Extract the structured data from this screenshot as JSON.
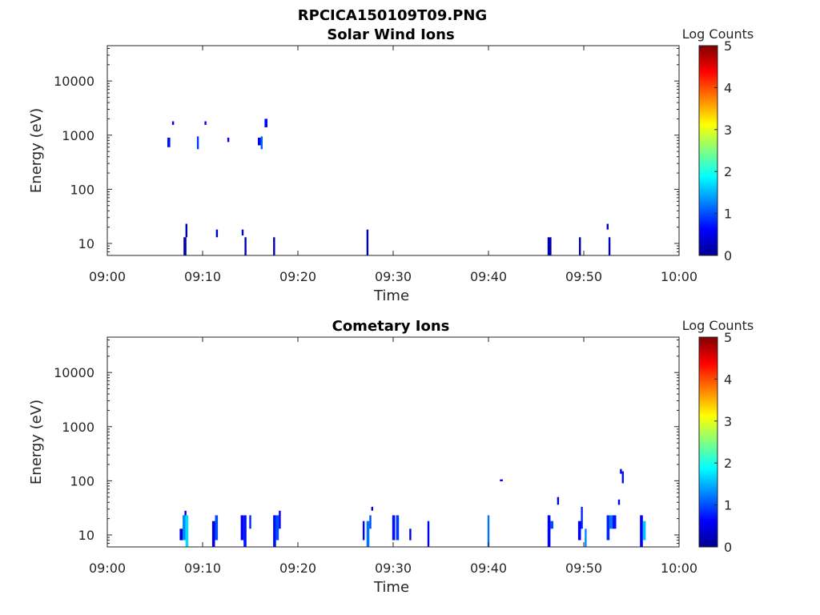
{
  "figure_title": "RPCICA150109T09.PNG",
  "colorbar_label": "Log Counts",
  "colormap": [
    "#00008f",
    "#0000ff",
    "#0080ff",
    "#00ffff",
    "#80ff80",
    "#ffff00",
    "#ff8000",
    "#ff0000",
    "#800000"
  ],
  "chart_data": [
    {
      "type": "heatmap",
      "title": "Solar Wind Ions",
      "xlabel": "Time",
      "ylabel": "Energy (eV)",
      "xticks": [
        "09:00",
        "09:10",
        "09:20",
        "09:30",
        "09:40",
        "09:50",
        "10:00"
      ],
      "yticks": [
        "10",
        "100",
        "1000",
        "10000"
      ],
      "xlim_minutes": [
        0,
        60
      ],
      "ylim_eV": [
        6,
        45000
      ],
      "yscale": "log",
      "colorbar": {
        "label": "Log Counts",
        "range": [
          0,
          5
        ],
        "ticks": [
          "0",
          "1",
          "2",
          "3",
          "4",
          "5"
        ]
      },
      "cells": [
        {
          "t": 6.3,
          "dt": 0.3,
          "e0": 600,
          "e1": 900,
          "v": 0.7
        },
        {
          "t": 6.8,
          "dt": 0.2,
          "e0": 1550,
          "e1": 1800,
          "v": 0.4
        },
        {
          "t": 9.4,
          "dt": 0.2,
          "e0": 550,
          "e1": 950,
          "v": 0.9
        },
        {
          "t": 10.2,
          "dt": 0.2,
          "e0": 1550,
          "e1": 1800,
          "v": 0.5
        },
        {
          "t": 12.6,
          "dt": 0.2,
          "e0": 750,
          "e1": 900,
          "v": 0.4
        },
        {
          "t": 15.8,
          "dt": 0.3,
          "e0": 650,
          "e1": 900,
          "v": 0.6
        },
        {
          "t": 16.1,
          "dt": 0.2,
          "e0": 550,
          "e1": 950,
          "v": 1.1
        },
        {
          "t": 16.5,
          "dt": 0.3,
          "e0": 1400,
          "e1": 2000,
          "v": 0.6
        },
        {
          "t": 8.0,
          "dt": 0.3,
          "e0": 6,
          "e1": 13,
          "v": 0.2
        },
        {
          "t": 8.2,
          "dt": 0.2,
          "e0": 13,
          "e1": 23,
          "v": 0.2
        },
        {
          "t": 11.4,
          "dt": 0.2,
          "e0": 13,
          "e1": 18,
          "v": 0.3
        },
        {
          "t": 14.1,
          "dt": 0.2,
          "e0": 14,
          "e1": 18,
          "v": 0.3
        },
        {
          "t": 14.4,
          "dt": 0.2,
          "e0": 6,
          "e1": 13,
          "v": 0.2
        },
        {
          "t": 17.4,
          "dt": 0.2,
          "e0": 6,
          "e1": 13,
          "v": 0.2
        },
        {
          "t": 27.2,
          "dt": 0.2,
          "e0": 6,
          "e1": 18,
          "v": 0.2
        },
        {
          "t": 46.2,
          "dt": 0.4,
          "e0": 6,
          "e1": 13,
          "v": 0.2
        },
        {
          "t": 49.5,
          "dt": 0.2,
          "e0": 6,
          "e1": 13,
          "v": 0.2
        },
        {
          "t": 52.4,
          "dt": 0.2,
          "e0": 18,
          "e1": 23,
          "v": 0.3
        },
        {
          "t": 52.6,
          "dt": 0.2,
          "e0": 6,
          "e1": 13,
          "v": 0.3
        }
      ]
    },
    {
      "type": "heatmap",
      "title": "Cometary Ions",
      "xlabel": "Time",
      "ylabel": "Energy (eV)",
      "xticks": [
        "09:00",
        "09:10",
        "09:20",
        "09:30",
        "09:40",
        "09:50",
        "10:00"
      ],
      "yticks": [
        "10",
        "100",
        "1000",
        "10000"
      ],
      "xlim_minutes": [
        0,
        60
      ],
      "ylim_eV": [
        6,
        45000
      ],
      "yscale": "log",
      "colorbar": {
        "label": "Log Counts",
        "range": [
          0,
          5
        ],
        "ticks": [
          "0",
          "1",
          "2",
          "3",
          "4",
          "5"
        ]
      },
      "cells": [
        {
          "t": 7.6,
          "dt": 0.3,
          "e0": 8,
          "e1": 13,
          "v": 0.4
        },
        {
          "t": 7.9,
          "dt": 0.3,
          "e0": 8,
          "e1": 23,
          "v": 1.3
        },
        {
          "t": 8.2,
          "dt": 0.3,
          "e0": 6,
          "e1": 23,
          "v": 1.7
        },
        {
          "t": 8.1,
          "dt": 0.2,
          "e0": 23,
          "e1": 28,
          "v": 0.4
        },
        {
          "t": 11.0,
          "dt": 0.3,
          "e0": 6,
          "e1": 18,
          "v": 0.5
        },
        {
          "t": 11.3,
          "dt": 0.3,
          "e0": 8,
          "e1": 23,
          "v": 1.0
        },
        {
          "t": 14.0,
          "dt": 0.3,
          "e0": 8,
          "e1": 23,
          "v": 0.6
        },
        {
          "t": 14.3,
          "dt": 0.3,
          "e0": 6,
          "e1": 23,
          "v": 0.7
        },
        {
          "t": 14.9,
          "dt": 0.2,
          "e0": 13,
          "e1": 23,
          "v": 0.8
        },
        {
          "t": 17.4,
          "dt": 0.3,
          "e0": 6,
          "e1": 23,
          "v": 0.7
        },
        {
          "t": 17.7,
          "dt": 0.3,
          "e0": 8,
          "e1": 23,
          "v": 1.0
        },
        {
          "t": 18.0,
          "dt": 0.2,
          "e0": 13,
          "e1": 28,
          "v": 0.6
        },
        {
          "t": 26.8,
          "dt": 0.2,
          "e0": 8,
          "e1": 18,
          "v": 0.6
        },
        {
          "t": 27.2,
          "dt": 0.3,
          "e0": 6,
          "e1": 18,
          "v": 1.2
        },
        {
          "t": 27.5,
          "dt": 0.2,
          "e0": 13,
          "e1": 23,
          "v": 1.0
        },
        {
          "t": 27.7,
          "dt": 0.2,
          "e0": 28,
          "e1": 33,
          "v": 0.4
        },
        {
          "t": 29.9,
          "dt": 0.3,
          "e0": 8,
          "e1": 23,
          "v": 0.7
        },
        {
          "t": 30.3,
          "dt": 0.3,
          "e0": 8,
          "e1": 23,
          "v": 0.9
        },
        {
          "t": 31.7,
          "dt": 0.2,
          "e0": 8,
          "e1": 13,
          "v": 0.4
        },
        {
          "t": 33.6,
          "dt": 0.2,
          "e0": 6,
          "e1": 18,
          "v": 0.5
        },
        {
          "t": 39.9,
          "dt": 0.2,
          "e0": 6,
          "e1": 23,
          "v": 1.2
        },
        {
          "t": 41.2,
          "dt": 0.3,
          "e0": 98,
          "e1": 106,
          "v": 0.5
        },
        {
          "t": 46.2,
          "dt": 0.3,
          "e0": 6,
          "e1": 23,
          "v": 0.6
        },
        {
          "t": 46.5,
          "dt": 0.3,
          "e0": 13,
          "e1": 18,
          "v": 1.0
        },
        {
          "t": 47.2,
          "dt": 0.2,
          "e0": 36,
          "e1": 50,
          "v": 0.4
        },
        {
          "t": 49.4,
          "dt": 0.3,
          "e0": 8,
          "e1": 18,
          "v": 0.6
        },
        {
          "t": 49.7,
          "dt": 0.2,
          "e0": 13,
          "e1": 33,
          "v": 0.8
        },
        {
          "t": 50.1,
          "dt": 0.2,
          "e0": 6,
          "e1": 13,
          "v": 1.3
        },
        {
          "t": 52.4,
          "dt": 0.3,
          "e0": 8,
          "e1": 23,
          "v": 0.8
        },
        {
          "t": 52.7,
          "dt": 0.3,
          "e0": 13,
          "e1": 23,
          "v": 1.2
        },
        {
          "t": 53.0,
          "dt": 0.4,
          "e0": 13,
          "e1": 23,
          "v": 0.7
        },
        {
          "t": 53.6,
          "dt": 0.2,
          "e0": 36,
          "e1": 45,
          "v": 0.5
        },
        {
          "t": 53.8,
          "dt": 0.2,
          "e0": 135,
          "e1": 165,
          "v": 0.5
        },
        {
          "t": 54.0,
          "dt": 0.2,
          "e0": 90,
          "e1": 150,
          "v": 0.7
        },
        {
          "t": 55.9,
          "dt": 0.3,
          "e0": 6,
          "e1": 23,
          "v": 0.6
        },
        {
          "t": 56.2,
          "dt": 0.3,
          "e0": 8,
          "e1": 18,
          "v": 1.6
        }
      ]
    }
  ]
}
